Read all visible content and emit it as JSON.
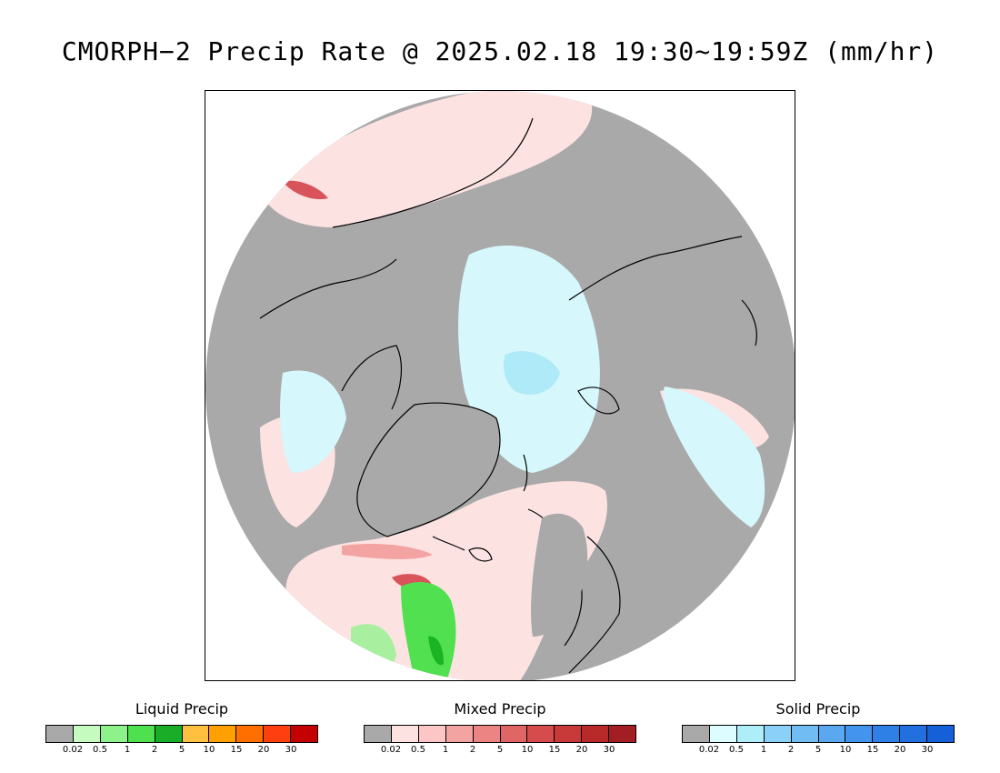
{
  "title": "CMORPH−2 Precip Rate @ 2025.02.18 19:30~19:59Z (mm/hr)",
  "map": {
    "projection": "north-polar-stereographic",
    "colors": {
      "no_precip": "#a9a9a9",
      "ocean_bg": "#ffffff",
      "mixed_light": "#fde2e2",
      "mixed_mid": "#f4a3a3",
      "mixed_dark": "#d9545a",
      "solid_light": "#d6f7fb",
      "solid_mid": "#aeeaf7",
      "liquid_light": "#a8f0a0",
      "liquid_mid": "#50e050",
      "liquid_dark": "#19b324",
      "coast": "#000000"
    }
  },
  "legends": [
    {
      "title": "Liquid Precip",
      "colors": [
        "#a9a9a9",
        "#c6fbc0",
        "#8ef28a",
        "#4ee04e",
        "#1aae28",
        "#ffbf3f",
        "#ff9f00",
        "#ff6f00",
        "#ff3f10",
        "#c40000"
      ],
      "labels": [
        "0.02",
        "0.5",
        "1",
        "2",
        "5",
        "10",
        "15",
        "20",
        "30"
      ]
    },
    {
      "title": "Mixed Precip",
      "colors": [
        "#a9a9a9",
        "#fde2e2",
        "#fcc6c6",
        "#f4a3a3",
        "#ec8484",
        "#e06666",
        "#d64c4c",
        "#c83a3a",
        "#b82a2a",
        "#a21e22"
      ],
      "labels": [
        "0.02",
        "0.5",
        "1",
        "2",
        "5",
        "10",
        "15",
        "20",
        "30"
      ]
    },
    {
      "title": "Solid Precip",
      "colors": [
        "#a9a9a9",
        "#dcfcff",
        "#aeeef8",
        "#8ad0f8",
        "#72bcf4",
        "#5aa8f0",
        "#4294ec",
        "#2f80e6",
        "#2270e0",
        "#1560d8"
      ],
      "labels": [
        "0.02",
        "0.5",
        "1",
        "2",
        "5",
        "10",
        "15",
        "20",
        "30"
      ]
    }
  ]
}
